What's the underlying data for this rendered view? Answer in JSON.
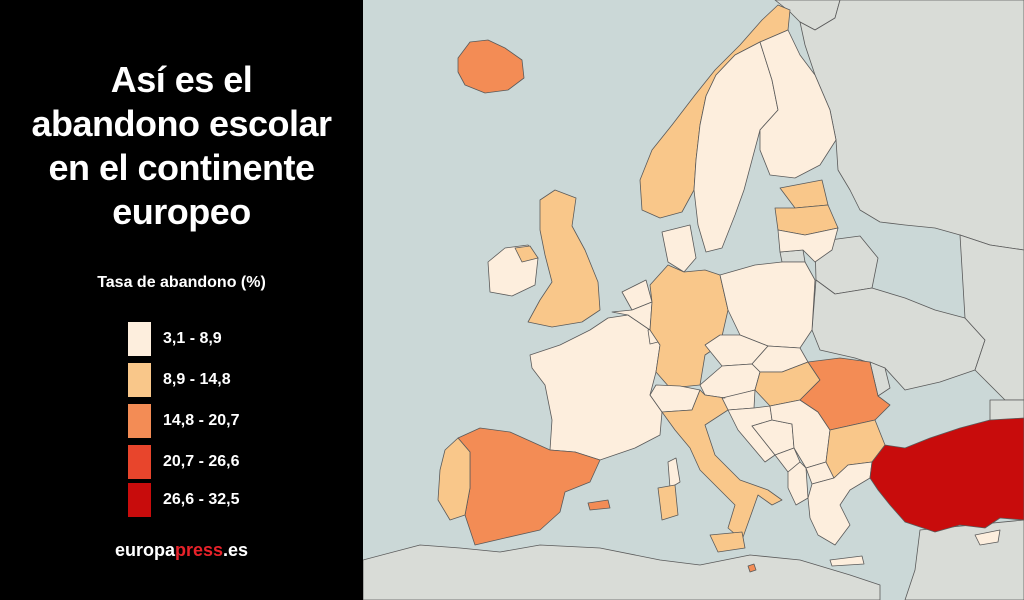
{
  "title_lines": [
    "Así es el",
    "abandono escolar",
    "en el continente",
    "europeo"
  ],
  "legend": {
    "title": "Tasa de abandono (%)",
    "items": [
      {
        "label": "3,1 - 8,9",
        "color": "#fdeedd"
      },
      {
        "label": "8,9 - 14,8",
        "color": "#f9c78a"
      },
      {
        "label": "14,8 - 20,7",
        "color": "#f38c55"
      },
      {
        "label": "20,7 - 26,6",
        "color": "#e8452c"
      },
      {
        "label": "26,6 - 32,5",
        "color": "#c80c0c"
      }
    ]
  },
  "brand": {
    "part1": "europa",
    "part2": "press",
    "part3": ".es"
  },
  "colors": {
    "sea": "#cbd8d7",
    "land_no_data": "#d9dcd7",
    "borders": "#5a5a5a",
    "brand_red": "#e8222a"
  },
  "countries": {
    "iceland": 3,
    "norway": 2,
    "sweden": 1,
    "finland": 1,
    "estonia": 2,
    "latvia": 2,
    "lithuania": 1,
    "denmark": 1,
    "ireland": 1,
    "united-kingdom": 2,
    "netherlands": 1,
    "belgium": 1,
    "luxembourg": 1,
    "germany": 2,
    "poland": 1,
    "czechia": 1,
    "slovakia": 1,
    "austria": 1,
    "switzerland": 1,
    "hungary": 2,
    "slovenia": 1,
    "croatia": 1,
    "bosnia": 1,
    "serbia": 1,
    "montenegro": 1,
    "north-macedonia": 1,
    "albania": 1,
    "romania": 3,
    "bulgaria": 2,
    "greece": 1,
    "turkey": 5,
    "france": 1,
    "spain": 3,
    "portugal": 2,
    "italy": 2,
    "malta": 3,
    "cyprus": 1
  }
}
